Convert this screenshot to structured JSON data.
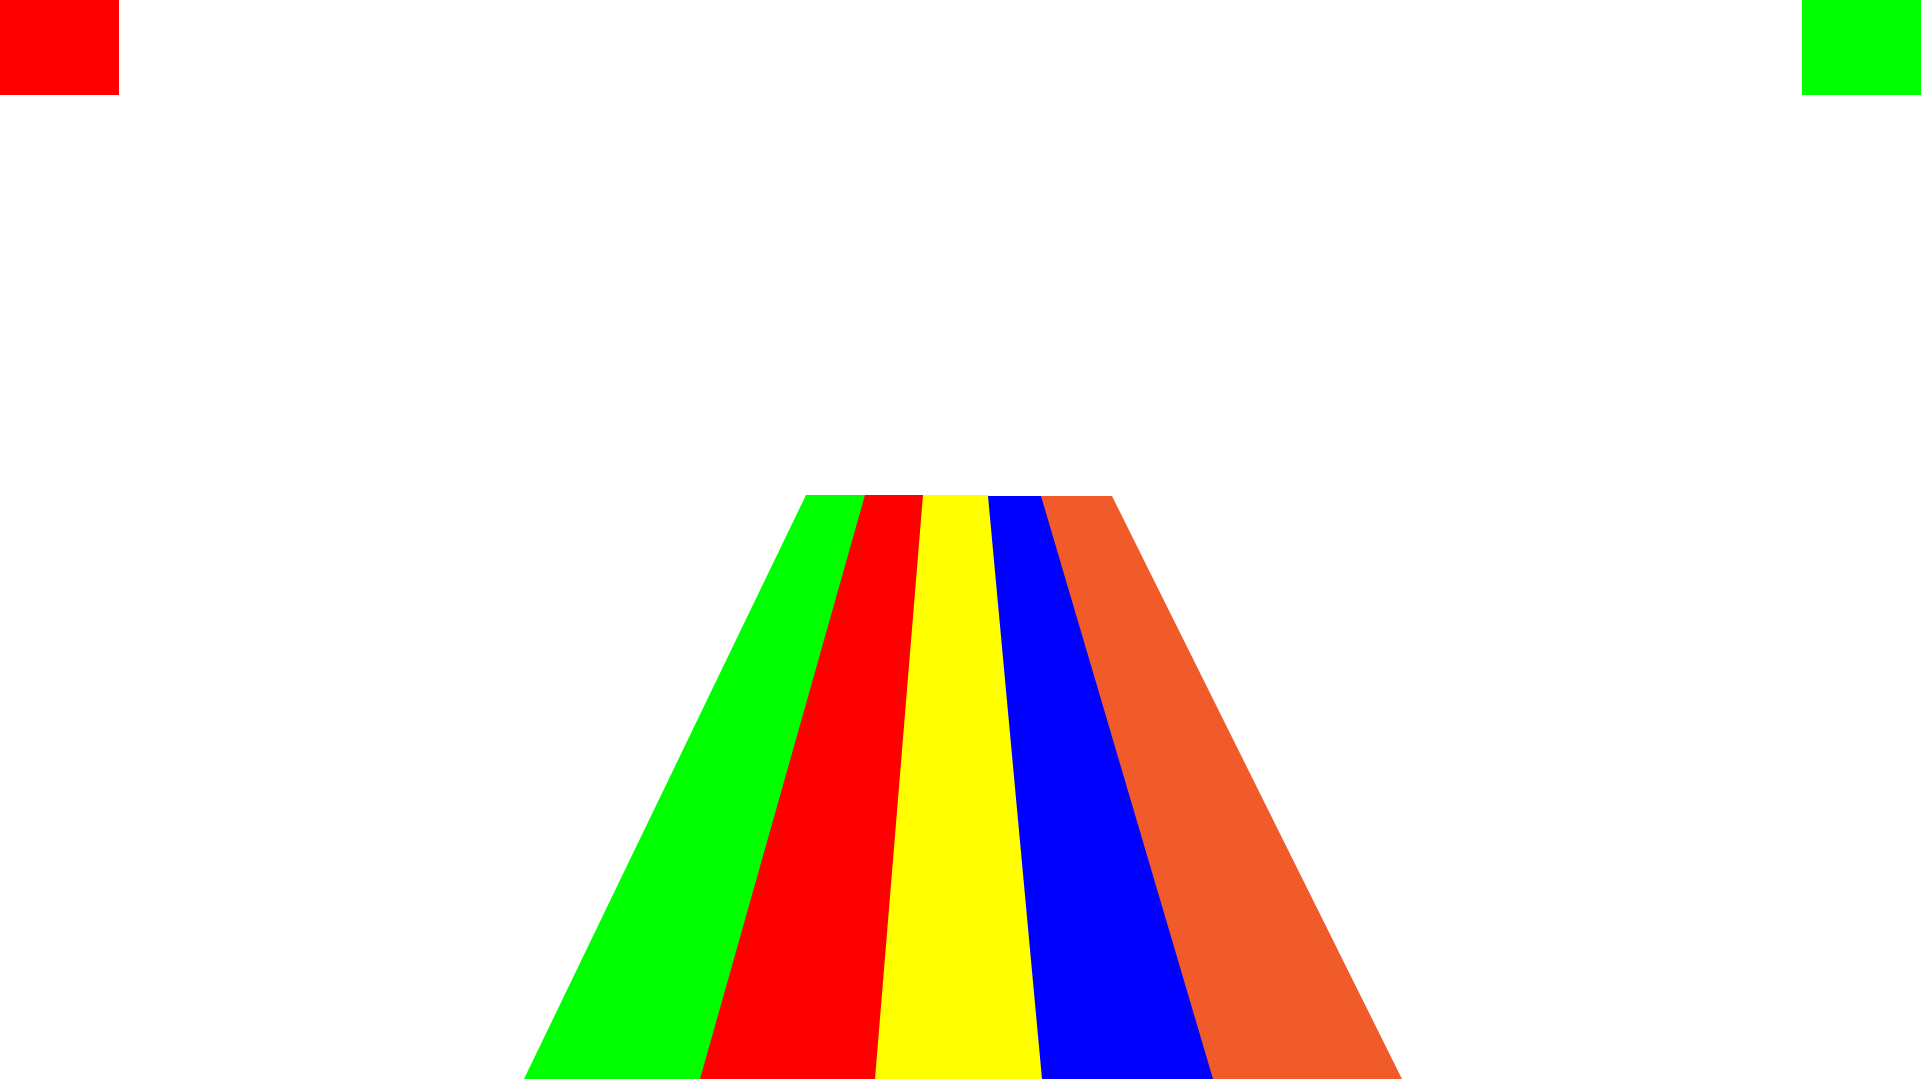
{
  "colors": {
    "background": "#ffffff",
    "left_corner_button": "#ff0000",
    "right_corner_button": "#00ff00"
  },
  "controls": [
    {
      "name": "left-corner-button",
      "color": "#ff0000"
    },
    {
      "name": "right-corner-button",
      "color": "#00ff00"
    }
  ],
  "lanes": [
    {
      "name": "lane-1",
      "color": "#00ff00"
    },
    {
      "name": "lane-2",
      "color": "#ff0000"
    },
    {
      "name": "lane-3",
      "color": "#ffff00"
    },
    {
      "name": "lane-4",
      "color": "#0000ff"
    },
    {
      "name": "lane-5",
      "color": "#f15a29"
    }
  ]
}
